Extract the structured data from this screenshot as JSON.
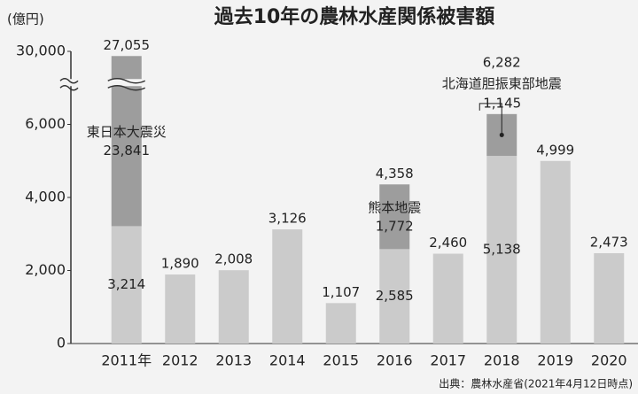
{
  "chart_data": {
    "type": "stacked_bar",
    "title": "過去10年の農林水産関係被害額",
    "y_axis_label": "(億円)",
    "categories": [
      "2011年",
      "2012",
      "2013",
      "2014",
      "2015",
      "2016",
      "2017",
      "2018",
      "2019",
      "2020"
    ],
    "series": [
      {
        "color": "#cbcbcb",
        "values": [
          3214,
          1890,
          2008,
          3126,
          1107,
          2585,
          2460,
          5138,
          4999,
          2473
        ],
        "value_labels": [
          "3,214",
          "1,890",
          "2,008",
          "3,126",
          "1,107",
          "2,585",
          "2,460",
          "5,138",
          "4,999",
          "2,473"
        ]
      },
      {
        "color": "#9d9d9d",
        "values": [
          23841,
          null,
          null,
          null,
          null,
          1772,
          null,
          1145,
          null,
          null
        ],
        "value_labels": [
          "23,841",
          null,
          null,
          null,
          null,
          "1,772",
          null,
          "1,145",
          null,
          null
        ],
        "labels": [
          "東日本大震災",
          null,
          null,
          null,
          null,
          "熊本地震",
          null,
          "北海道胆振東部地震",
          null,
          null
        ]
      }
    ],
    "totals": [
      27055,
      null,
      null,
      null,
      null,
      4358,
      null,
      6282,
      null,
      null
    ],
    "total_labels": [
      "27,055",
      null,
      null,
      null,
      null,
      "4,358",
      null,
      "6,282",
      null,
      null
    ],
    "ylim": [
      0,
      30000
    ],
    "yticks": [
      0,
      {
        "value": 2000,
        "label": "2,000"
      },
      {
        "value": 4000,
        "label": "4,000"
      },
      {
        "value": 6000,
        "label": "6,000"
      },
      {
        "value": 30000,
        "label": "30,000"
      }
    ],
    "axis_break": true,
    "grid": false,
    "source": "出典：農林水産省(2021年4月12日時点)"
  }
}
